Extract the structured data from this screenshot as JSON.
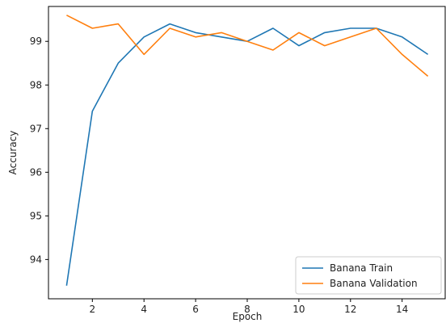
{
  "chart_data": {
    "type": "line",
    "title": "",
    "xlabel": "Epoch",
    "ylabel": "Accuracy",
    "xlim": [
      0.3,
      15.7
    ],
    "ylim": [
      93.1,
      99.8
    ],
    "xticks": [
      2,
      4,
      6,
      8,
      10,
      12,
      14
    ],
    "yticks": [
      94,
      95,
      96,
      97,
      98,
      99
    ],
    "x": [
      1,
      2,
      3,
      4,
      5,
      6,
      7,
      8,
      9,
      10,
      11,
      12,
      13,
      14,
      15
    ],
    "series": [
      {
        "name": "Banana Train",
        "color": "#1f77b4",
        "values": [
          93.4,
          97.4,
          98.5,
          99.1,
          99.4,
          99.2,
          99.1,
          99.0,
          99.3,
          98.9,
          99.2,
          99.3,
          99.3,
          99.1,
          98.7
        ]
      },
      {
        "name": "Banana Validation",
        "color": "#ff7f0e",
        "values": [
          99.6,
          99.3,
          99.4,
          98.7,
          99.3,
          99.1,
          99.2,
          99.0,
          98.8,
          99.2,
          98.9,
          99.1,
          99.3,
          98.7,
          98.2
        ]
      }
    ],
    "legend": "lower-right",
    "grid": false
  }
}
